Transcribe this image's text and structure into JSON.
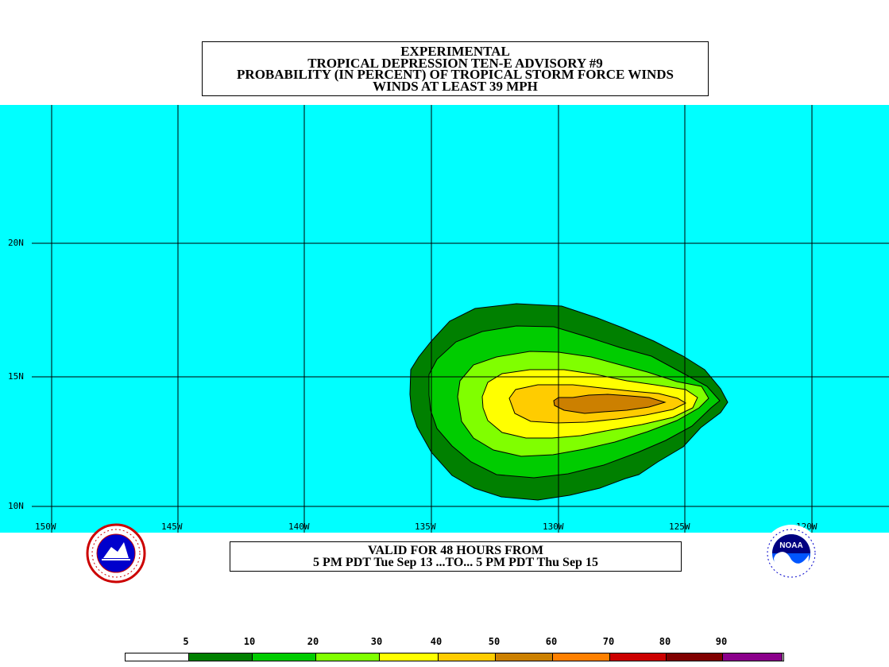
{
  "title": {
    "line1": "EXPERIMENTAL",
    "line2": "TROPICAL DEPRESSION TEN-E ADVISORY #9",
    "line3": "PROBABILITY (IN PERCENT) OF TROPICAL STORM FORCE WINDS",
    "line4": "WINDS AT LEAST 39 MPH"
  },
  "valid": {
    "line1": "VALID FOR 48 HOURS FROM",
    "line2": "5 PM PDT Tue Sep 13 ...TO... 5 PM PDT Thu Sep 15"
  },
  "map": {
    "ocean_color": "#00ffff",
    "lon_labels": [
      "150W",
      "145W",
      "140W",
      "135W",
      "130W",
      "125W",
      "120W"
    ],
    "lat_labels": [
      "20N",
      "15N",
      "10N"
    ]
  },
  "legend": {
    "numbers": [
      "5",
      "10",
      "20",
      "30",
      "40",
      "50",
      "60",
      "70",
      "80",
      "90"
    ],
    "colors": [
      "#ffffff",
      "#008000",
      "#00cc00",
      "#80ff00",
      "#ffff00",
      "#ffcc00",
      "#cc8000",
      "#ff8000",
      "#cc0000",
      "#800000",
      "#8b008b"
    ]
  },
  "logos": {
    "left": "nws-logo-icon",
    "right": "noaa-logo-icon",
    "noaa_text": "NOAA"
  }
}
